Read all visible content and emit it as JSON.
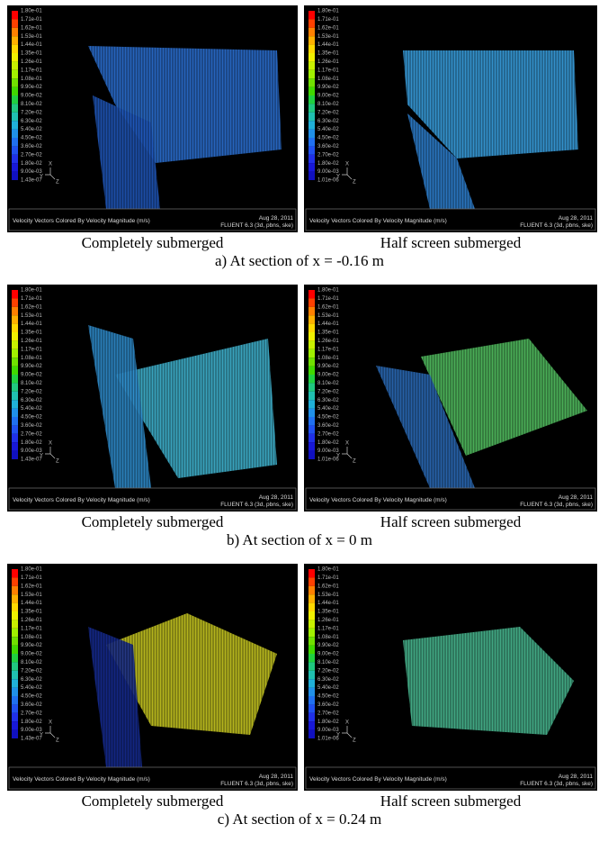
{
  "colorbar_labels": [
    "1.80e-01",
    "1.71e-01",
    "1.62e-01",
    "1.53e-01",
    "1.44e-01",
    "1.35e-01",
    "1.26e-01",
    "1.17e-01",
    "1.08e-01",
    "9.90e-02",
    "9.00e-02",
    "8.10e-02",
    "7.20e-02",
    "6.30e-02",
    "5.40e-02",
    "4.50e-02",
    "3.60e-02",
    "2.70e-02",
    "1.80e-02",
    "9.00e-03"
  ],
  "footer": {
    "title": "Velocity Vectors Colored By Velocity Magnitude (m/s)",
    "date": "Aug 28, 2011",
    "solver": "FLUENT 6.3 (3d, pbns, ske)"
  },
  "axis_labels": [
    "X",
    "Y",
    "Z"
  ],
  "rows": [
    {
      "caption": "a) At section of x = -0.16 m",
      "panels": [
        {
          "caption": "Completely submerged",
          "min_label": "1.43e-07"
        },
        {
          "caption": "Half screen submerged",
          "min_label": "1.01e-06"
        }
      ]
    },
    {
      "caption": "b) At section of x = 0 m",
      "panels": [
        {
          "caption": "Completely submerged",
          "min_label": "1.43e-07"
        },
        {
          "caption": "Half screen submerged",
          "min_label": "1.01e-06"
        }
      ]
    },
    {
      "caption": "c) At section of x = 0.24 m",
      "panels": [
        {
          "caption": "Completely submerged",
          "min_label": "1.43e-07"
        },
        {
          "caption": "Half screen submerged",
          "min_label": "1.01e-06"
        }
      ]
    }
  ]
}
